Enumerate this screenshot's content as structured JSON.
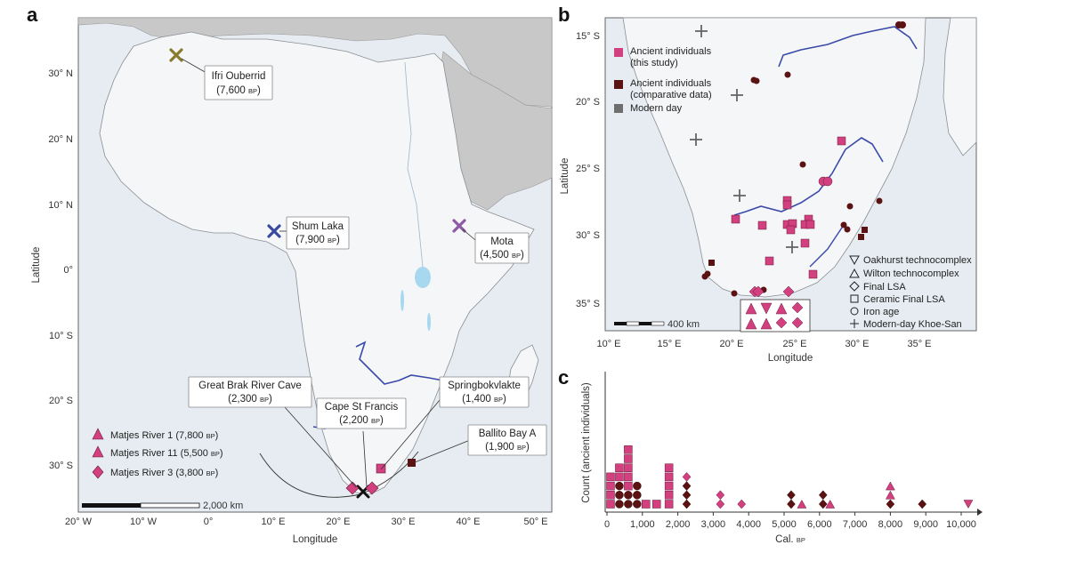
{
  "panel_a": {
    "label": "a",
    "xlabel": "Longitude",
    "ylabel": "Latitude",
    "x_ticks": [
      "20° W",
      "10° W",
      "0°",
      "10° E",
      "20° E",
      "30° E",
      "40° E",
      "50° E"
    ],
    "y_ticks": [
      "30° N",
      "20° N",
      "10° N",
      "0°",
      "10° S",
      "20° S",
      "30° S"
    ],
    "scale": "2,000 km",
    "sites": [
      {
        "name": "Ifri Ouberrid",
        "date": "(7,600 ",
        "unit": "BP",
        "close": ")",
        "color": "#8a7a2e"
      },
      {
        "name": "Shum Laka",
        "date": "(7,900 ",
        "unit": "BP",
        "close": ")",
        "color": "#3a4aa0"
      },
      {
        "name": "Mota",
        "date": "(4,500 ",
        "unit": "BP",
        "close": ")",
        "color": "#8e5aa5"
      },
      {
        "name": "Great Brak River Cave",
        "date": "(2,300 ",
        "unit": "BP",
        "close": ")"
      },
      {
        "name": "Cape St Francis",
        "date": "(2,200 ",
        "unit": "BP",
        "close": ")"
      },
      {
        "name": "Springbokvlakte",
        "date": "(1,400 ",
        "unit": "BP",
        "close": ")"
      },
      {
        "name": "Ballito Bay A",
        "date": "(1,900 ",
        "unit": "BP",
        "close": ")"
      }
    ],
    "legend": [
      {
        "name": "Matjes River 1 (7,800 ",
        "unit": "BP",
        "close": ")"
      },
      {
        "name": "Matjes River 11 (5,500 ",
        "unit": "BP",
        "close": ")"
      },
      {
        "name": "Matjes River 3 (3,800 ",
        "unit": "BP",
        "close": ")"
      }
    ]
  },
  "panel_b": {
    "label": "b",
    "xlabel": "Longitude",
    "ylabel": "Latitude",
    "x_ticks": [
      "10° E",
      "15° E",
      "20° E",
      "25° E",
      "30° E",
      "35° E"
    ],
    "y_ticks": [
      "15° S",
      "20° S",
      "25° S",
      "30° S",
      "35° S"
    ],
    "scale": "400 km",
    "legend_color": [
      {
        "label": "Ancient individuals",
        "label2": "(this study)",
        "color": "#d2407f"
      },
      {
        "label": "Ancient individuals",
        "label2": "(comparative data)",
        "color": "#5a1212"
      },
      {
        "label": "Modern day",
        "label2": "",
        "color": "#6e6e6e"
      }
    ],
    "legend_shape": [
      "Oakhurst technocomplex",
      "Wilton technocomplex",
      "Final LSA",
      "Ceramic Final LSA",
      "Iron age",
      "Modern-day Khoe-San"
    ]
  },
  "chart_data": {
    "type": "scatter",
    "label": "c",
    "xlabel": "Cal. ",
    "xlabel_unit": "BP",
    "ylabel": "Count (ancient individuals)",
    "x_ticks": [
      "0",
      "1,000",
      "2,000",
      "3,000",
      "4,000",
      "5,000",
      "6,000",
      "7,000",
      "8,000",
      "9,000",
      "10,000"
    ],
    "xlim": [
      0,
      10500
    ],
    "colors": {
      "this_study": "#d2407f",
      "comparative": "#5a1212"
    },
    "points": [
      {
        "x": 100,
        "y": 1,
        "shape": "square",
        "group": "this_study"
      },
      {
        "x": 100,
        "y": 2,
        "shape": "square",
        "group": "this_study"
      },
      {
        "x": 100,
        "y": 3,
        "shape": "square",
        "group": "this_study"
      },
      {
        "x": 100,
        "y": 4,
        "shape": "square",
        "group": "this_study"
      },
      {
        "x": 350,
        "y": 1,
        "shape": "circle",
        "group": "comparative"
      },
      {
        "x": 350,
        "y": 2,
        "shape": "circle",
        "group": "comparative"
      },
      {
        "x": 350,
        "y": 3,
        "shape": "circle",
        "group": "comparative"
      },
      {
        "x": 350,
        "y": 4,
        "shape": "square",
        "group": "this_study"
      },
      {
        "x": 350,
        "y": 5,
        "shape": "square",
        "group": "this_study"
      },
      {
        "x": 600,
        "y": 1,
        "shape": "circle",
        "group": "comparative"
      },
      {
        "x": 600,
        "y": 2,
        "shape": "circle",
        "group": "comparative"
      },
      {
        "x": 600,
        "y": 3,
        "shape": "square",
        "group": "this_study"
      },
      {
        "x": 600,
        "y": 4,
        "shape": "square",
        "group": "this_study"
      },
      {
        "x": 600,
        "y": 5,
        "shape": "square",
        "group": "this_study"
      },
      {
        "x": 600,
        "y": 6,
        "shape": "square",
        "group": "this_study"
      },
      {
        "x": 600,
        "y": 7,
        "shape": "square",
        "group": "this_study"
      },
      {
        "x": 850,
        "y": 1,
        "shape": "circle",
        "group": "comparative"
      },
      {
        "x": 850,
        "y": 2,
        "shape": "circle",
        "group": "comparative"
      },
      {
        "x": 850,
        "y": 3,
        "shape": "circle",
        "group": "comparative"
      },
      {
        "x": 1100,
        "y": 1,
        "shape": "square",
        "group": "this_study"
      },
      {
        "x": 1400,
        "y": 1,
        "shape": "square",
        "group": "this_study"
      },
      {
        "x": 1750,
        "y": 1,
        "shape": "square",
        "group": "this_study"
      },
      {
        "x": 1750,
        "y": 2,
        "shape": "square",
        "group": "this_study"
      },
      {
        "x": 1750,
        "y": 3,
        "shape": "square",
        "group": "this_study"
      },
      {
        "x": 1750,
        "y": 4,
        "shape": "square",
        "group": "this_study"
      },
      {
        "x": 1750,
        "y": 5,
        "shape": "square",
        "group": "this_study"
      },
      {
        "x": 2250,
        "y": 1,
        "shape": "diamond",
        "group": "comparative"
      },
      {
        "x": 2250,
        "y": 2,
        "shape": "diamond",
        "group": "comparative"
      },
      {
        "x": 2250,
        "y": 3,
        "shape": "diamond",
        "group": "comparative"
      },
      {
        "x": 2250,
        "y": 4,
        "shape": "diamond",
        "group": "this_study"
      },
      {
        "x": 3200,
        "y": 1,
        "shape": "diamond",
        "group": "this_study"
      },
      {
        "x": 3200,
        "y": 2,
        "shape": "diamond",
        "group": "this_study"
      },
      {
        "x": 3800,
        "y": 1,
        "shape": "diamond",
        "group": "this_study"
      },
      {
        "x": 5200,
        "y": 1,
        "shape": "diamond",
        "group": "comparative"
      },
      {
        "x": 5200,
        "y": 2,
        "shape": "diamond",
        "group": "comparative"
      },
      {
        "x": 5500,
        "y": 1,
        "shape": "triangle",
        "group": "this_study"
      },
      {
        "x": 6100,
        "y": 1,
        "shape": "diamond",
        "group": "comparative"
      },
      {
        "x": 6100,
        "y": 2,
        "shape": "diamond",
        "group": "comparative"
      },
      {
        "x": 6300,
        "y": 1,
        "shape": "triangle",
        "group": "this_study"
      },
      {
        "x": 8000,
        "y": 1,
        "shape": "diamond",
        "group": "comparative"
      },
      {
        "x": 8000,
        "y": 2,
        "shape": "triangle",
        "group": "this_study"
      },
      {
        "x": 8000,
        "y": 3,
        "shape": "triangle",
        "group": "this_study"
      },
      {
        "x": 8900,
        "y": 1,
        "shape": "diamond",
        "group": "comparative"
      },
      {
        "x": 10200,
        "y": 1,
        "shape": "triangle-down",
        "group": "this_study"
      }
    ]
  }
}
